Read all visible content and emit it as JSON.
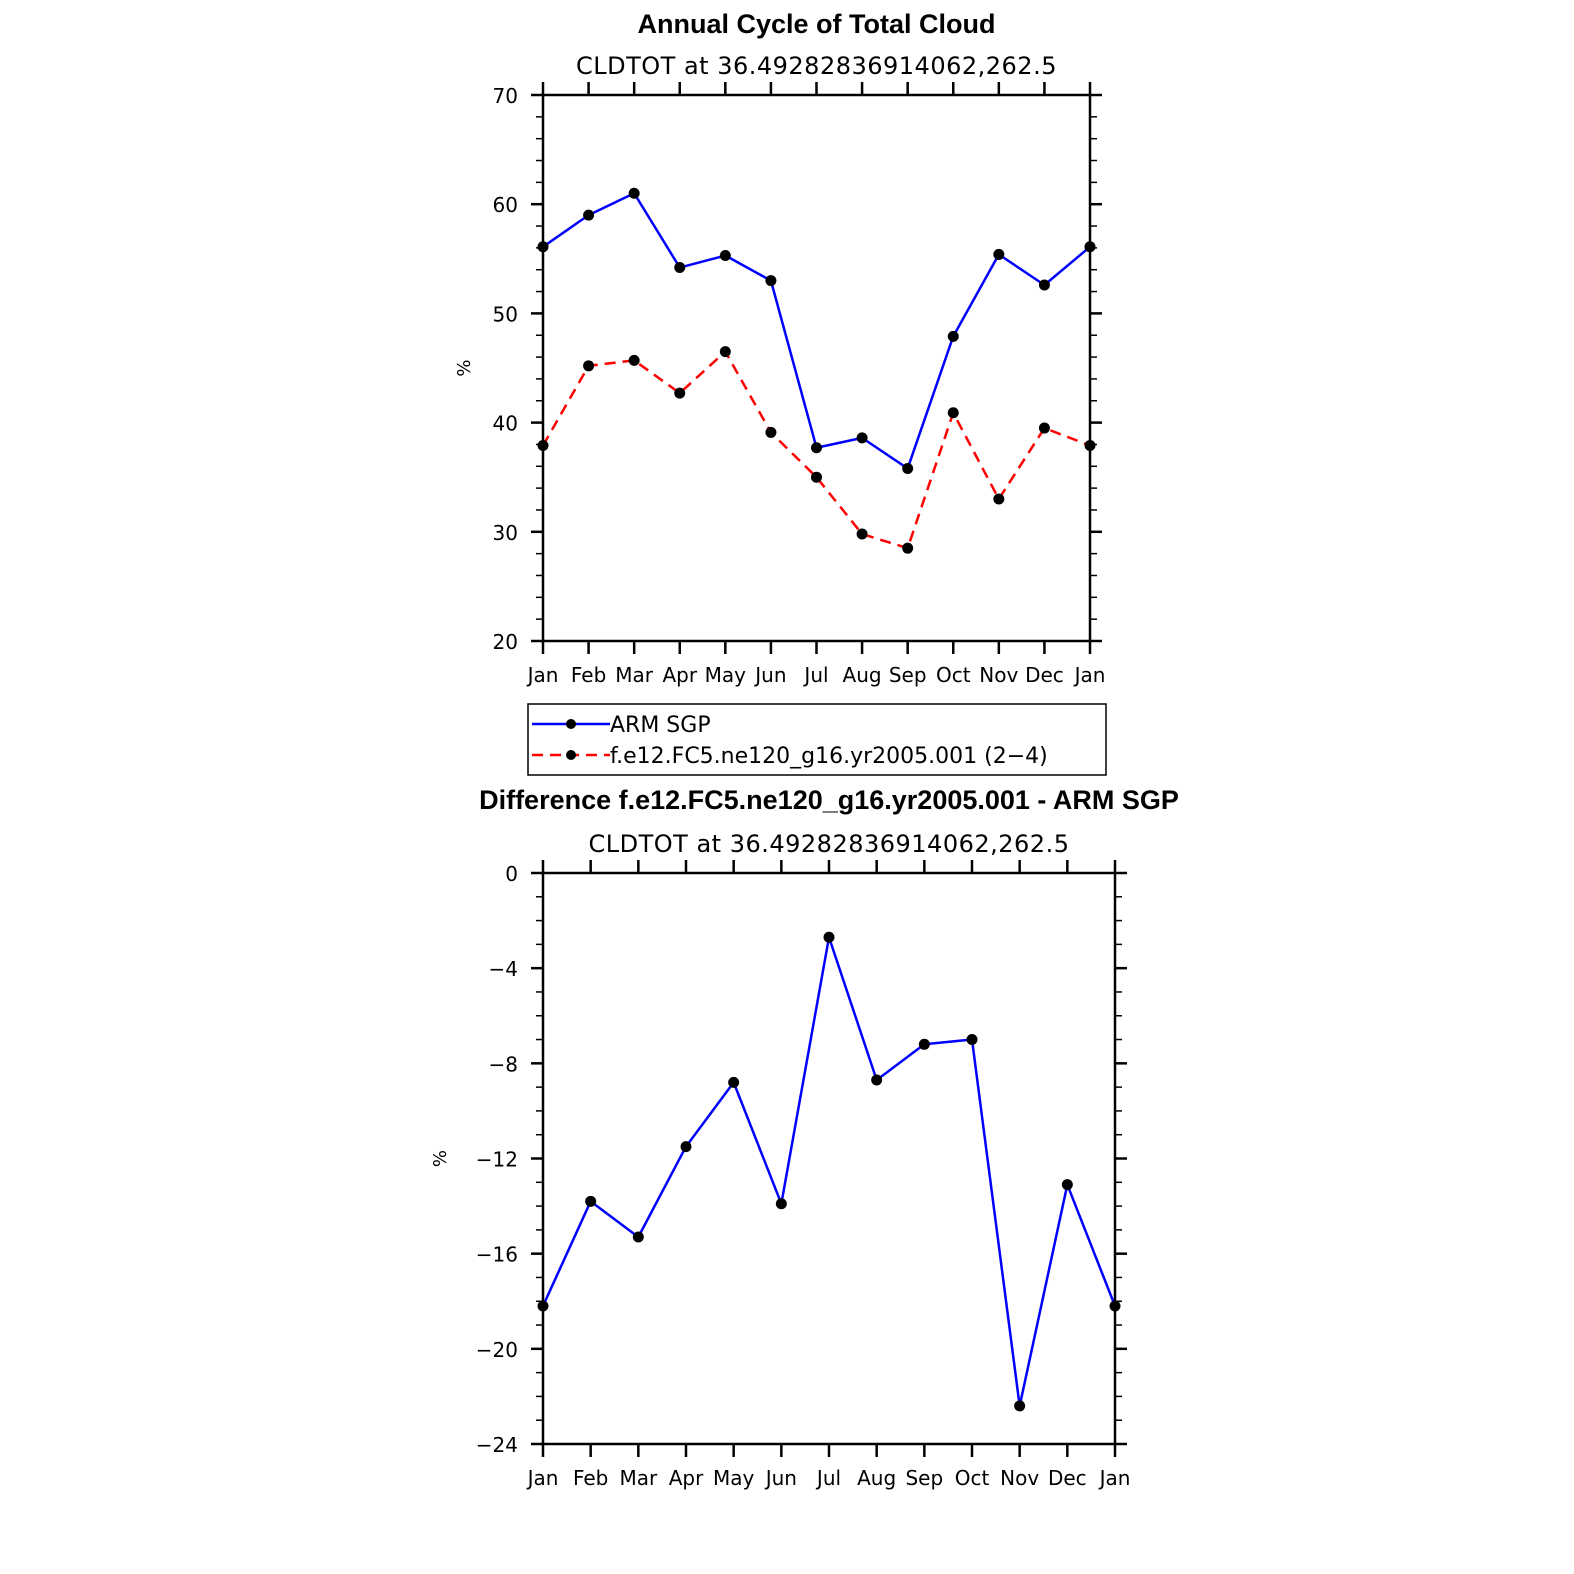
{
  "chart_data": [
    {
      "type": "line",
      "title": "Annual Cycle of Total Cloud",
      "subtitle": "CLDTOT at 36.49282836914062,262.5",
      "xlabel": "",
      "ylabel": "%",
      "categories": [
        "Jan",
        "Feb",
        "Mar",
        "Apr",
        "May",
        "Jun",
        "Jul",
        "Aug",
        "Sep",
        "Oct",
        "Nov",
        "Dec",
        "Jan"
      ],
      "ylim": [
        20,
        70
      ],
      "yticks": [
        20,
        30,
        40,
        50,
        60,
        70
      ],
      "ytick_labels": [
        "20",
        "30",
        "40",
        "50",
        "60",
        "70"
      ],
      "minor_step": 2,
      "series": [
        {
          "name": "ARM SGP",
          "color": "#0000ff",
          "dash": "solid",
          "values": [
            56.1,
            59.0,
            61.0,
            54.2,
            55.3,
            53.0,
            37.7,
            38.6,
            35.8,
            47.9,
            55.4,
            52.6,
            56.1
          ]
        },
        {
          "name": "f.e12.FC5.ne120_g16.yr2005.001 (2−4)",
          "color": "#ff0000",
          "dash": "dashed",
          "values": [
            37.9,
            45.2,
            45.7,
            42.7,
            46.5,
            39.1,
            35.0,
            29.8,
            28.5,
            40.9,
            33.0,
            39.5,
            37.9
          ]
        }
      ],
      "legend": "below"
    },
    {
      "type": "line",
      "title": "Difference f.e12.FC5.ne120_g16.yr2005.001 - ARM SGP",
      "subtitle": "CLDTOT at 36.49282836914062,262.5",
      "xlabel": "",
      "ylabel": "%",
      "categories": [
        "Jan",
        "Feb",
        "Mar",
        "Apr",
        "May",
        "Jun",
        "Jul",
        "Aug",
        "Sep",
        "Oct",
        "Nov",
        "Dec",
        "Jan"
      ],
      "ylim": [
        -24,
        0
      ],
      "yticks": [
        -24,
        -20,
        -16,
        -12,
        -8,
        -4,
        0
      ],
      "ytick_labels": [
        "−24",
        "−20",
        "−16",
        "−12",
        "−8",
        "−4",
        "0"
      ],
      "minor_step": 1,
      "series": [
        {
          "name": "Difference",
          "color": "#0000ff",
          "dash": "solid",
          "values": [
            -18.2,
            -13.8,
            -15.3,
            -11.5,
            -8.8,
            -13.9,
            -2.7,
            -8.7,
            -7.2,
            -7.0,
            -22.4,
            -13.1,
            -18.2
          ]
        }
      ]
    }
  ]
}
